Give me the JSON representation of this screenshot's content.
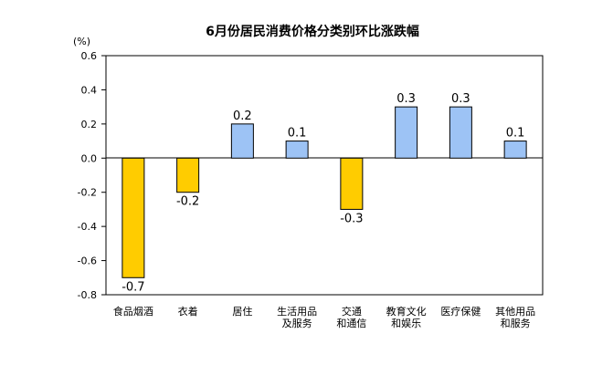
{
  "chart_data": {
    "type": "bar",
    "title": "6月份居民消费价格分类别环比涨跌幅",
    "unit": "(%)",
    "categories": [
      [
        "食品烟酒"
      ],
      [
        "衣着"
      ],
      [
        "居住"
      ],
      [
        "生活用品",
        "及服务"
      ],
      [
        "交通",
        "和通信"
      ],
      [
        "教育文化",
        "和娱乐"
      ],
      [
        "医疗保健"
      ],
      [
        "其他用品",
        "和服务"
      ]
    ],
    "values": [
      -0.7,
      -0.2,
      0.2,
      0.1,
      -0.3,
      0.3,
      0.3,
      0.1
    ],
    "data_labels": [
      "-0.7",
      "-0.2",
      "0.2",
      "0.1",
      "-0.3",
      "0.3",
      "0.3",
      "0.1"
    ],
    "yticks": [
      "0.6",
      "0.4",
      "0.2",
      "0.0",
      "-0.2",
      "-0.4",
      "-0.6",
      "-0.8"
    ],
    "ylim": [
      -0.8,
      0.6
    ],
    "xlabel": "",
    "ylabel": "",
    "grid": false,
    "legend": "none",
    "colors": {
      "positive": "#9DC3F5",
      "negative": "#FFCC00",
      "border": "#000000",
      "axis": "#000000"
    }
  }
}
